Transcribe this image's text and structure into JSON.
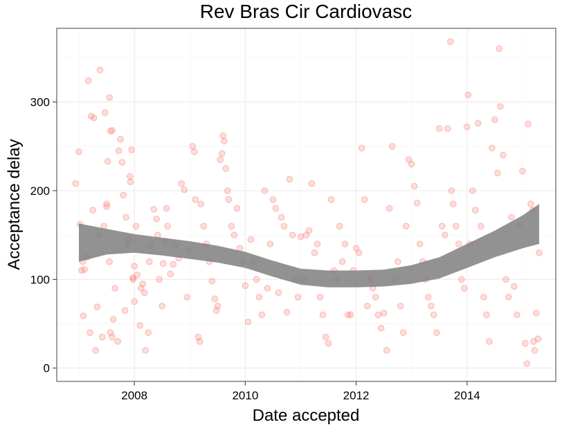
{
  "chart_data": {
    "type": "scatter",
    "title": "Rev Bras Cir Cardiovasc",
    "xlabel": "Date accepted",
    "ylabel": "Acceptance delay",
    "xlim": [
      2006.6,
      2015.6
    ],
    "ylim": [
      -15,
      383
    ],
    "xticks": [
      2008,
      2010,
      2012,
      2014
    ],
    "xtick_labels": [
      "2008",
      "2010",
      "2012",
      "2014"
    ],
    "yticks": [
      0,
      100,
      200,
      300
    ],
    "ytick_labels": [
      "0",
      "100",
      "200",
      "300"
    ],
    "grid": true,
    "point_color": "#f8766d",
    "smooth_band_color": "#7f7f7f",
    "smooth_band": {
      "x": [
        2007.0,
        2007.5,
        2008.0,
        2008.5,
        2009.0,
        2009.5,
        2010.0,
        2010.5,
        2011.0,
        2011.5,
        2012.0,
        2012.5,
        2013.0,
        2013.5,
        2014.0,
        2014.5,
        2015.0,
        2015.3
      ],
      "lower": [
        120,
        128,
        130,
        127,
        123,
        119,
        113,
        103,
        94,
        91,
        91,
        92,
        95,
        101,
        113,
        125,
        135,
        140
      ],
      "upper": [
        163,
        157,
        151,
        147,
        143,
        138,
        131,
        121,
        112,
        110,
        110,
        111,
        116,
        125,
        140,
        155,
        172,
        185
      ]
    },
    "points": [
      [
        2006.94,
        208
      ],
      [
        2007.0,
        244
      ],
      [
        2007.07,
        120
      ],
      [
        2007.05,
        110
      ],
      [
        2007.1,
        111
      ],
      [
        2007.02,
        162
      ],
      [
        2007.08,
        59
      ],
      [
        2007.15,
        125
      ],
      [
        2007.17,
        324
      ],
      [
        2007.2,
        40
      ],
      [
        2007.22,
        284
      ],
      [
        2007.27,
        282
      ],
      [
        2007.25,
        178
      ],
      [
        2007.3,
        20
      ],
      [
        2007.33,
        69
      ],
      [
        2007.35,
        150
      ],
      [
        2007.38,
        336
      ],
      [
        2007.42,
        35
      ],
      [
        2007.45,
        160
      ],
      [
        2007.47,
        288
      ],
      [
        2007.5,
        185
      ],
      [
        2007.5,
        182
      ],
      [
        2007.52,
        233
      ],
      [
        2007.55,
        305
      ],
      [
        2007.57,
        267
      ],
      [
        2007.6,
        268
      ],
      [
        2007.55,
        120
      ],
      [
        2007.57,
        40
      ],
      [
        2007.6,
        35
      ],
      [
        2007.62,
        55
      ],
      [
        2007.65,
        90
      ],
      [
        2007.7,
        30
      ],
      [
        2007.72,
        245
      ],
      [
        2007.75,
        258
      ],
      [
        2007.78,
        232
      ],
      [
        2007.8,
        195
      ],
      [
        2007.83,
        65
      ],
      [
        2007.85,
        170
      ],
      [
        2007.88,
        140
      ],
      [
        2007.9,
        145
      ],
      [
        2007.92,
        216
      ],
      [
        2007.93,
        210
      ],
      [
        2007.95,
        246
      ],
      [
        2007.97,
        102
      ],
      [
        2007.98,
        100
      ],
      [
        2008.0,
        115
      ],
      [
        2008.0,
        75
      ],
      [
        2008.03,
        160
      ],
      [
        2008.05,
        105
      ],
      [
        2008.1,
        48
      ],
      [
        2008.12,
        90
      ],
      [
        2008.15,
        95
      ],
      [
        2008.18,
        85
      ],
      [
        2008.2,
        20
      ],
      [
        2008.25,
        40
      ],
      [
        2008.27,
        120
      ],
      [
        2008.3,
        138
      ],
      [
        2008.35,
        179
      ],
      [
        2008.4,
        168
      ],
      [
        2008.42,
        150
      ],
      [
        2008.45,
        100
      ],
      [
        2008.5,
        70
      ],
      [
        2008.52,
        118
      ],
      [
        2008.55,
        143
      ],
      [
        2008.58,
        180
      ],
      [
        2008.6,
        160
      ],
      [
        2008.65,
        106
      ],
      [
        2008.7,
        117
      ],
      [
        2008.75,
        138
      ],
      [
        2008.8,
        124
      ],
      [
        2008.85,
        208
      ],
      [
        2008.9,
        201
      ],
      [
        2008.95,
        80
      ],
      [
        2009.0,
        133
      ],
      [
        2009.05,
        250
      ],
      [
        2009.08,
        244
      ],
      [
        2009.1,
        190
      ],
      [
        2009.15,
        35
      ],
      [
        2009.18,
        30
      ],
      [
        2009.2,
        185
      ],
      [
        2009.25,
        160
      ],
      [
        2009.3,
        140
      ],
      [
        2009.35,
        120
      ],
      [
        2009.4,
        98
      ],
      [
        2009.45,
        78
      ],
      [
        2009.48,
        65
      ],
      [
        2009.5,
        70
      ],
      [
        2009.55,
        235
      ],
      [
        2009.58,
        242
      ],
      [
        2009.6,
        262
      ],
      [
        2009.62,
        256
      ],
      [
        2009.65,
        225
      ],
      [
        2009.68,
        200
      ],
      [
        2009.7,
        190
      ],
      [
        2009.75,
        160
      ],
      [
        2009.8,
        150
      ],
      [
        2009.85,
        180
      ],
      [
        2009.9,
        135
      ],
      [
        2009.95,
        120
      ],
      [
        2010.0,
        93
      ],
      [
        2010.05,
        52
      ],
      [
        2010.1,
        145
      ],
      [
        2010.15,
        120
      ],
      [
        2010.2,
        100
      ],
      [
        2010.25,
        80
      ],
      [
        2010.3,
        60
      ],
      [
        2010.35,
        200
      ],
      [
        2010.4,
        90
      ],
      [
        2010.45,
        140
      ],
      [
        2010.5,
        190
      ],
      [
        2010.55,
        180
      ],
      [
        2010.6,
        85
      ],
      [
        2010.65,
        170
      ],
      [
        2010.7,
        160
      ],
      [
        2010.75,
        63
      ],
      [
        2010.8,
        213
      ],
      [
        2010.85,
        150
      ],
      [
        2010.9,
        100
      ],
      [
        2010.95,
        80
      ],
      [
        2011.0,
        148
      ],
      [
        2011.05,
        100
      ],
      [
        2011.1,
        150
      ],
      [
        2011.15,
        155
      ],
      [
        2011.2,
        208
      ],
      [
        2011.25,
        130
      ],
      [
        2011.3,
        140
      ],
      [
        2011.35,
        80
      ],
      [
        2011.4,
        60
      ],
      [
        2011.45,
        35
      ],
      [
        2011.5,
        28
      ],
      [
        2011.55,
        190
      ],
      [
        2011.6,
        110
      ],
      [
        2011.65,
        100
      ],
      [
        2011.7,
        160
      ],
      [
        2011.75,
        120
      ],
      [
        2011.8,
        140
      ],
      [
        2011.85,
        60
      ],
      [
        2011.9,
        60
      ],
      [
        2011.95,
        110
      ],
      [
        2012.0,
        135
      ],
      [
        2012.05,
        130
      ],
      [
        2012.1,
        248
      ],
      [
        2012.15,
        190
      ],
      [
        2012.2,
        70
      ],
      [
        2012.25,
        100
      ],
      [
        2012.3,
        90
      ],
      [
        2012.35,
        80
      ],
      [
        2012.4,
        60
      ],
      [
        2012.45,
        45
      ],
      [
        2012.5,
        62
      ],
      [
        2012.55,
        20
      ],
      [
        2012.6,
        180
      ],
      [
        2012.65,
        250
      ],
      [
        2012.7,
        100
      ],
      [
        2012.75,
        120
      ],
      [
        2012.8,
        70
      ],
      [
        2012.85,
        40
      ],
      [
        2012.9,
        160
      ],
      [
        2012.95,
        235
      ],
      [
        2013.0,
        230
      ],
      [
        2013.05,
        205
      ],
      [
        2013.1,
        186
      ],
      [
        2013.15,
        140
      ],
      [
        2013.2,
        120
      ],
      [
        2013.25,
        100
      ],
      [
        2013.3,
        80
      ],
      [
        2013.35,
        70
      ],
      [
        2013.4,
        60
      ],
      [
        2013.45,
        40
      ],
      [
        2013.5,
        270
      ],
      [
        2013.55,
        160
      ],
      [
        2013.6,
        150
      ],
      [
        2013.65,
        270
      ],
      [
        2013.7,
        368
      ],
      [
        2013.72,
        200
      ],
      [
        2013.75,
        185
      ],
      [
        2013.8,
        160
      ],
      [
        2013.85,
        140
      ],
      [
        2013.9,
        100
      ],
      [
        2013.95,
        90
      ],
      [
        2014.0,
        272
      ],
      [
        2014.02,
        308
      ],
      [
        2014.05,
        140
      ],
      [
        2014.1,
        200
      ],
      [
        2014.15,
        178
      ],
      [
        2014.2,
        276
      ],
      [
        2014.25,
        160
      ],
      [
        2014.3,
        80
      ],
      [
        2014.35,
        60
      ],
      [
        2014.4,
        30
      ],
      [
        2014.45,
        248
      ],
      [
        2014.5,
        280
      ],
      [
        2014.55,
        220
      ],
      [
        2014.58,
        360
      ],
      [
        2014.6,
        295
      ],
      [
        2014.65,
        240
      ],
      [
        2014.7,
        100
      ],
      [
        2014.75,
        80
      ],
      [
        2014.8,
        170
      ],
      [
        2014.85,
        92
      ],
      [
        2014.9,
        60
      ],
      [
        2014.95,
        160
      ],
      [
        2015.0,
        222
      ],
      [
        2015.05,
        28
      ],
      [
        2015.08,
        5
      ],
      [
        2015.1,
        275
      ],
      [
        2015.15,
        185
      ],
      [
        2015.18,
        178
      ],
      [
        2015.2,
        30
      ],
      [
        2015.22,
        20
      ],
      [
        2015.25,
        62
      ],
      [
        2015.28,
        33
      ],
      [
        2015.3,
        130
      ]
    ]
  }
}
